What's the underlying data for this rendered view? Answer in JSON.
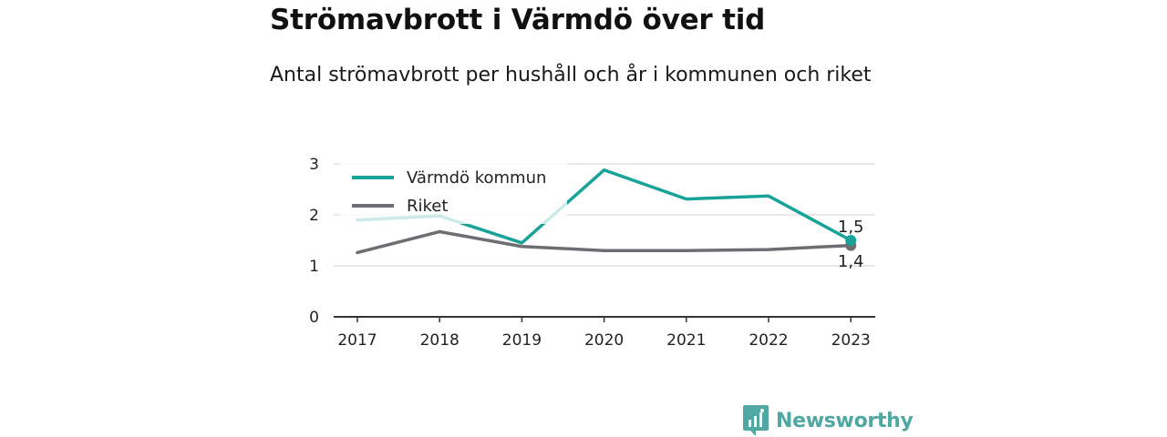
{
  "title": "Strömavbrott i Värmdö över tid",
  "subtitle": "Antal strömavbrott per hushåll och år i kommunen och riket",
  "brand": {
    "name": "Newsworthy",
    "icon": "newsworthy-logo-icon",
    "color": "#4fa8a3"
  },
  "colors": {
    "kommun": "#17a398",
    "riket": "#6e6d72",
    "grid": "#dcdcdc",
    "axis": "#333333"
  },
  "chart_data": {
    "type": "line",
    "x": [
      "2017",
      "2018",
      "2019",
      "2020",
      "2021",
      "2022",
      "2023"
    ],
    "yticks": [
      "0",
      "1",
      "2",
      "3"
    ],
    "ylim": [
      0,
      3
    ],
    "grid": true,
    "legend_position": "top-left",
    "series": [
      {
        "name": "Värmdö kommun",
        "values": [
          1.9,
          1.98,
          1.45,
          2.88,
          2.31,
          2.37,
          1.5
        ],
        "end_label": "1,5"
      },
      {
        "name": "Riket",
        "values": [
          1.26,
          1.67,
          1.38,
          1.3,
          1.3,
          1.32,
          1.4
        ],
        "end_label": "1,4"
      }
    ]
  }
}
